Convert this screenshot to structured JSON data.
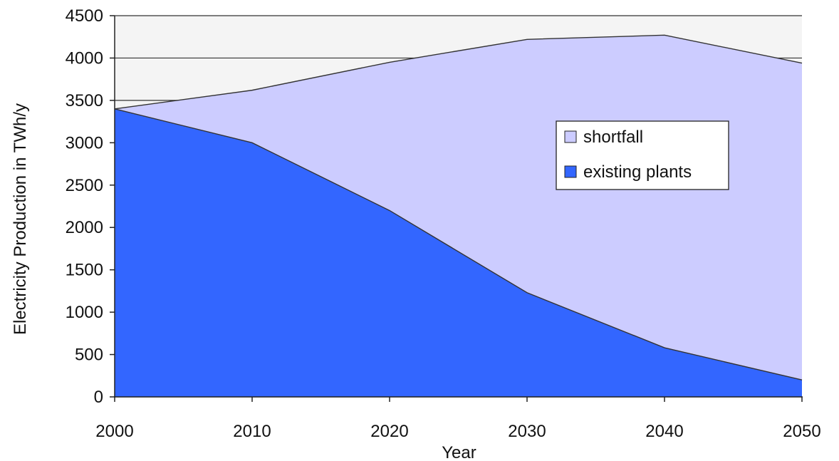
{
  "chart_data": {
    "type": "area",
    "stacked": false,
    "xlabel": "Year",
    "ylabel": "Electricity Production in TWh/y",
    "x": [
      2000,
      2010,
      2020,
      2030,
      2040,
      2050
    ],
    "xlim": [
      2000,
      2050
    ],
    "ylim": [
      0,
      4500
    ],
    "x_ticks": [
      "2000",
      "2010",
      "2020",
      "2030",
      "2040",
      "2050"
    ],
    "y_ticks": [
      "0",
      "500",
      "1000",
      "1500",
      "2000",
      "2500",
      "3000",
      "3500",
      "4000",
      "4500"
    ],
    "grid": "horizontal",
    "legend_position": "center-right",
    "series": [
      {
        "name": "shortfall",
        "color": "#ccccff",
        "x": [
          2000,
          2010,
          2020,
          2030,
          2040,
          2050
        ],
        "values": [
          3400,
          3620,
          3950,
          4220,
          4270,
          3940
        ]
      },
      {
        "name": "existing plants",
        "color": "#3366ff",
        "x": [
          2000,
          2010,
          2020,
          2030,
          2040,
          2050
        ],
        "values": [
          3400,
          3000,
          2200,
          1230,
          580,
          200
        ]
      }
    ],
    "colors": {
      "plot_background": "#f4f4f4",
      "gridline": "#333333",
      "outline": "#333333"
    }
  }
}
